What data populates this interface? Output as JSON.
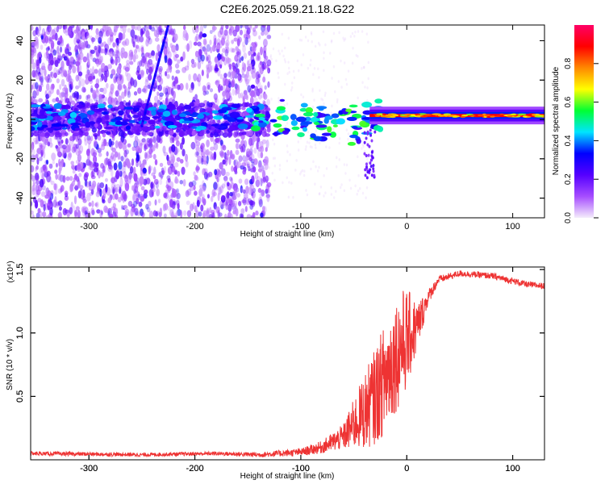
{
  "title": "C2E6.2025.059.21.18.G22",
  "colors": {
    "snr_line": "#ee3333",
    "axis": "#000000"
  },
  "chart_data": [
    {
      "type": "heatmap",
      "xlabel": "Height of straight line (km)",
      "ylabel": "Frequency (Hz)",
      "xlim": [
        -355,
        130
      ],
      "ylim": [
        -50,
        48
      ],
      "xticks": [
        {
          "value": -300,
          "label": "-300"
        },
        {
          "value": -200,
          "label": "-200"
        },
        {
          "value": -100,
          "label": "-100"
        },
        {
          "value": 0,
          "label": "0"
        },
        {
          "value": 100,
          "label": "100"
        }
      ],
      "yticks": [
        {
          "value": -40,
          "label": "-40"
        },
        {
          "value": -20,
          "label": "-20"
        },
        {
          "value": 0,
          "label": "0"
        },
        {
          "value": 20,
          "label": "20"
        },
        {
          "value": 40,
          "label": "40"
        }
      ],
      "colorbar": {
        "label": "Normalized spectral amplitude",
        "range": [
          0,
          1
        ],
        "ticks": [
          {
            "value": 0.0,
            "label": "0.0"
          },
          {
            "value": 0.2,
            "label": "0.2"
          },
          {
            "value": 0.4,
            "label": "0.4"
          },
          {
            "value": 0.6,
            "label": "0.6"
          },
          {
            "value": 0.8,
            "label": "0.8"
          }
        ],
        "stops": [
          "#f4ecfb",
          "#a64dff",
          "#5500ff",
          "#0000ff",
          "#00e5ff",
          "#00ff33",
          "#ffff00",
          "#ff8800",
          "#ff0000",
          "#ff0066"
        ]
      },
      "features": {
        "noise_region_x": [
          -355,
          -130
        ],
        "sparse_region_x": [
          -130,
          -35
        ],
        "tone_band_freq_hz": 2,
        "tone_band_x": [
          -35,
          130
        ],
        "slant_streak": {
          "x_start": -250,
          "freq_start": -3,
          "x_end": -225,
          "freq_end": 48
        }
      }
    },
    {
      "type": "line",
      "xlabel": "Height of straight line (km)",
      "ylabel": "SNR (10 * v/v)",
      "y_multiplier": "(x10⁴)",
      "xlim": [
        -355,
        130
      ],
      "ylim": [
        0,
        1.52
      ],
      "xticks": [
        {
          "value": -300,
          "label": "-300"
        },
        {
          "value": -200,
          "label": "-200"
        },
        {
          "value": -100,
          "label": "-100"
        },
        {
          "value": 0,
          "label": "0"
        },
        {
          "value": 100,
          "label": "100"
        }
      ],
      "yticks": [
        {
          "value": 0.5,
          "label": "0.5"
        },
        {
          "value": 1.0,
          "label": "1.0"
        },
        {
          "value": 1.5,
          "label": "1.5"
        }
      ],
      "series": [
        {
          "name": "SNR",
          "envelope": {
            "x": [
              -355,
              -250,
              -180,
              -140,
              -100,
              -80,
              -60,
              -50,
              -40,
              -30,
              -20,
              -12,
              -5,
              0,
              10,
              20,
              30,
              50,
              80,
              100,
              115,
              130
            ],
            "mid": [
              0.05,
              0.04,
              0.05,
              0.04,
              0.06,
              0.1,
              0.18,
              0.28,
              0.38,
              0.5,
              0.65,
              0.8,
              0.9,
              0.95,
              1.05,
              1.28,
              1.42,
              1.47,
              1.45,
              1.41,
              1.38,
              1.37
            ],
            "amp": [
              0.015,
              0.015,
              0.015,
              0.02,
              0.03,
              0.05,
              0.1,
              0.2,
              0.3,
              0.38,
              0.45,
              0.45,
              0.45,
              0.4,
              0.2,
              0.06,
              0.03,
              0.025,
              0.025,
              0.025,
              0.025,
              0.025
            ]
          }
        }
      ]
    }
  ]
}
